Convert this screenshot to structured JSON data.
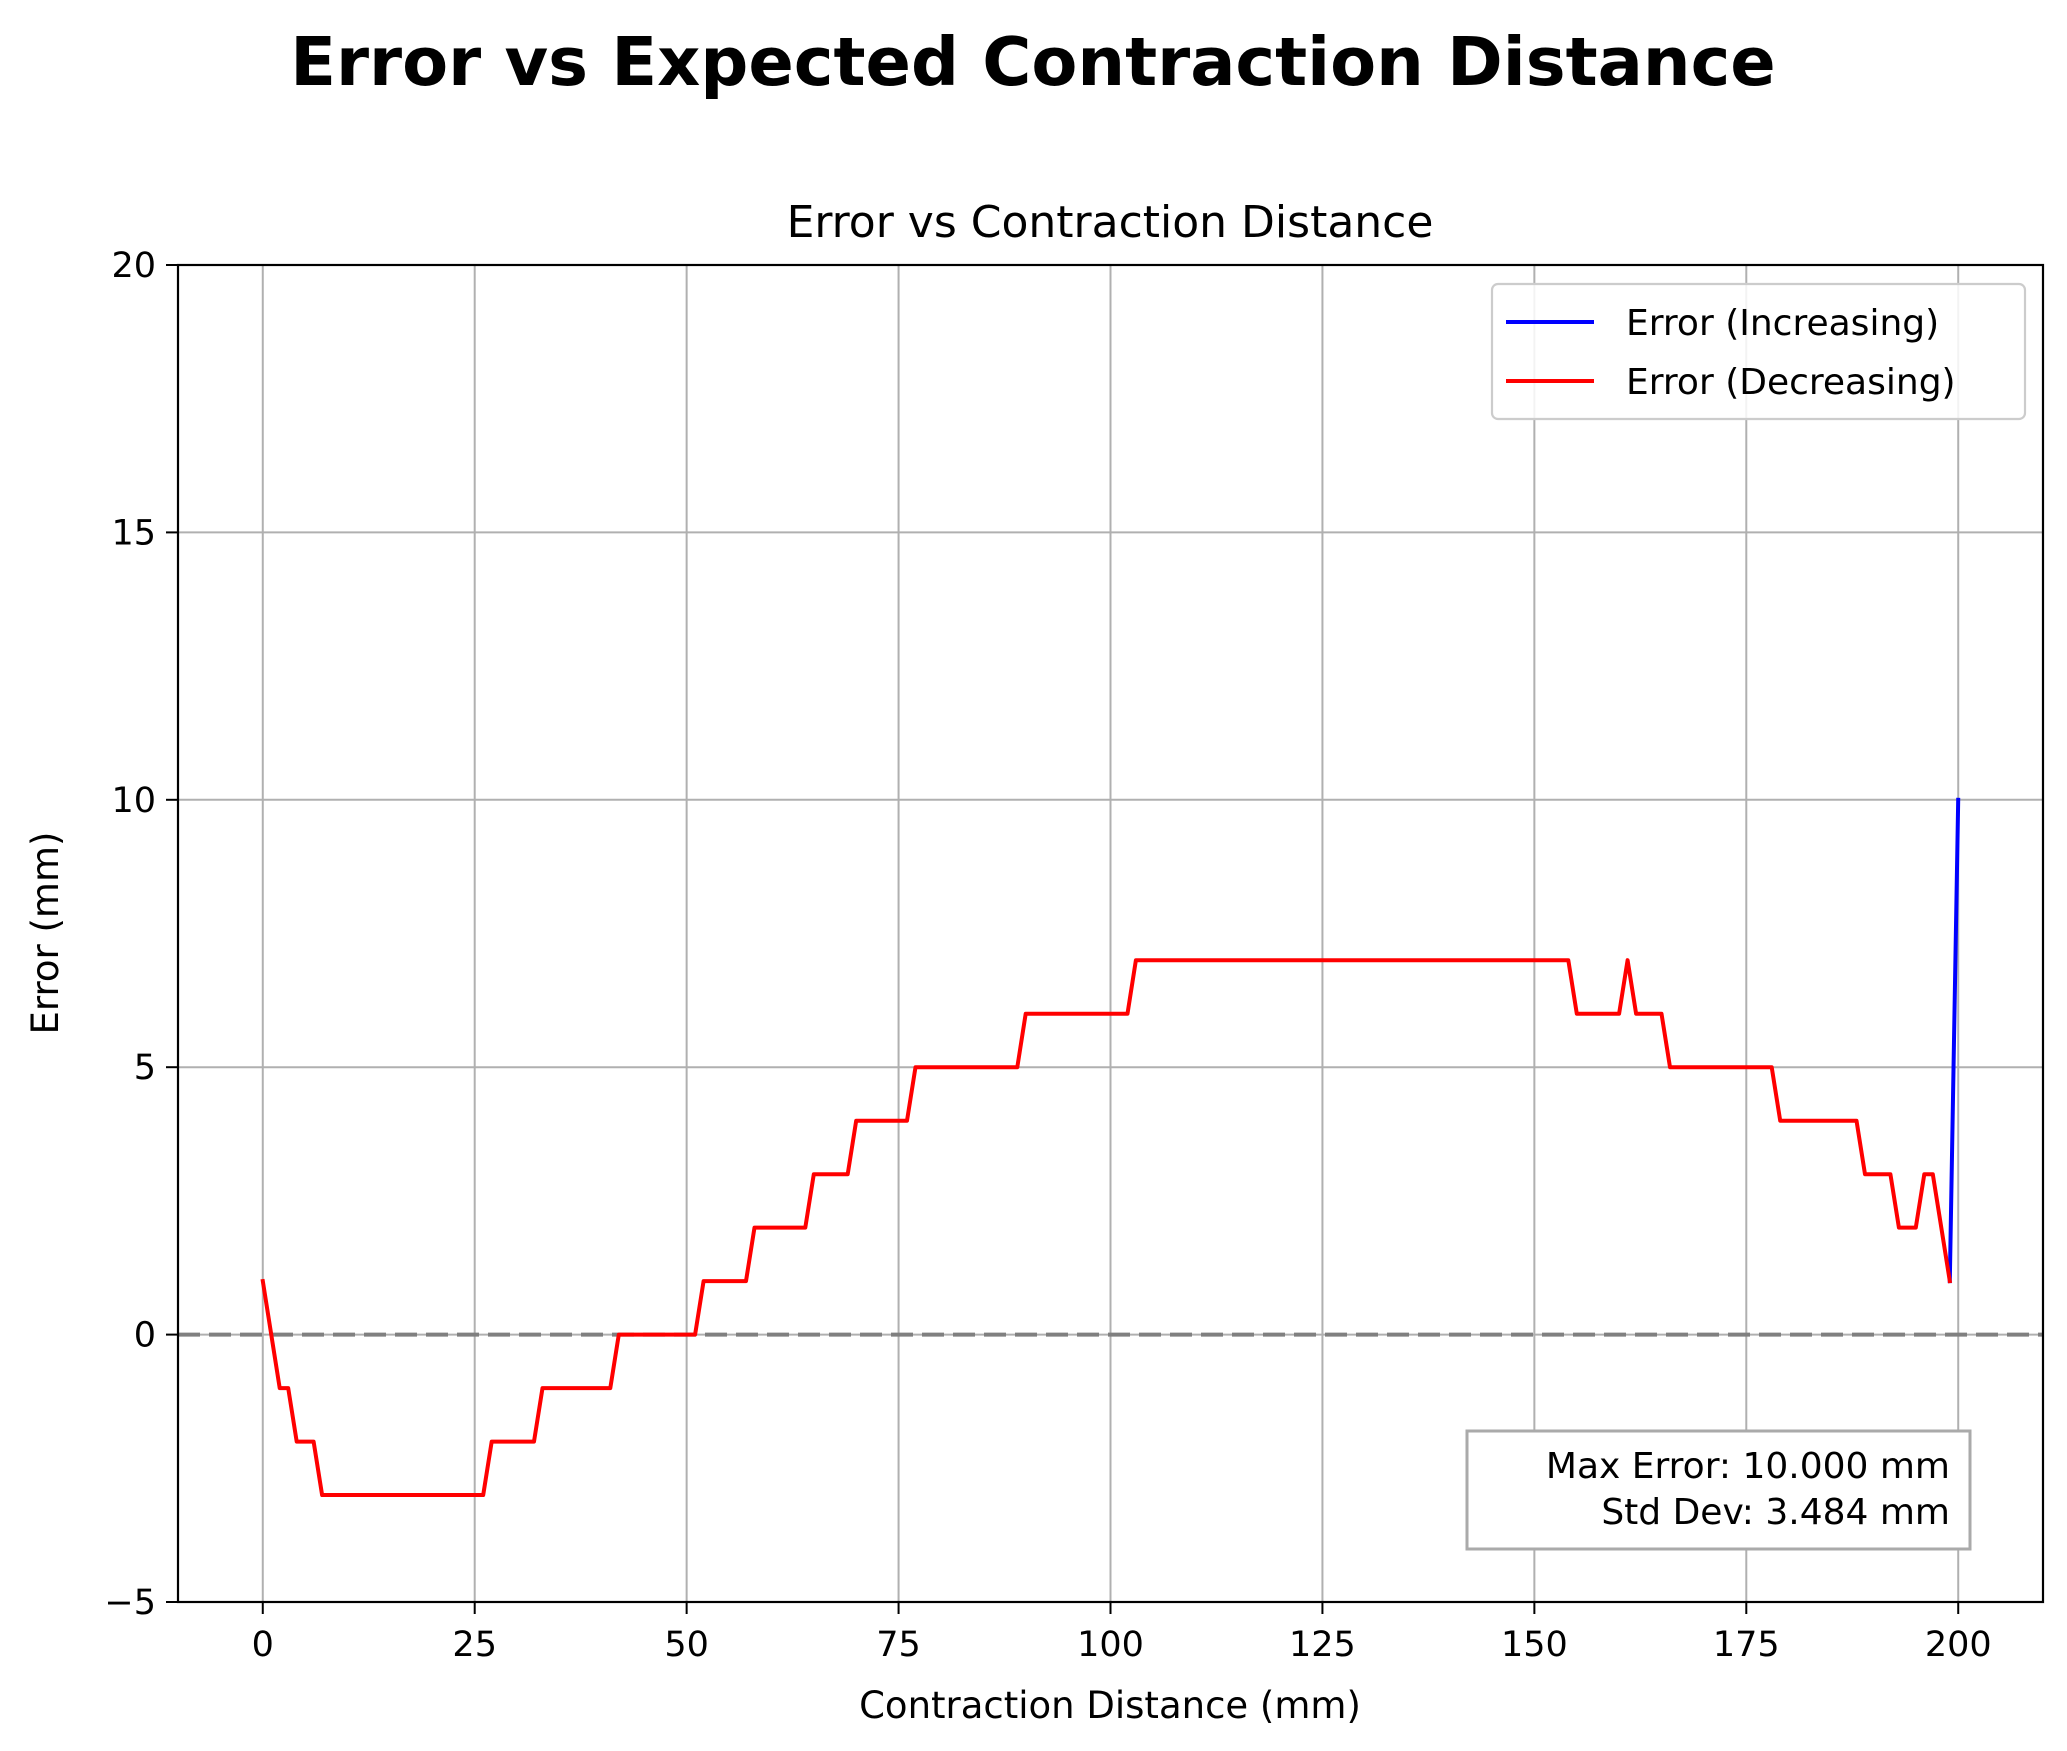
{
  "figure": {
    "suptitle": "Error vs Expected Contraction Distance"
  },
  "chart_data": {
    "type": "line",
    "title": "Error vs Contraction Distance",
    "xlabel": "Contraction Distance (mm)",
    "ylabel": "Error (mm)",
    "xlim": [
      -10,
      210
    ],
    "ylim": [
      -5,
      20
    ],
    "xticks": [
      0,
      25,
      50,
      75,
      100,
      125,
      150,
      175,
      200
    ],
    "yticks": [
      -5,
      0,
      5,
      10,
      15,
      20
    ],
    "grid": true,
    "legend_position": "top-right",
    "reference_line": {
      "y": 0,
      "style": "dashed",
      "color": "#808080"
    },
    "series": [
      {
        "name": "Error (Increasing)",
        "color": "#0000ff",
        "x": [
          199,
          200
        ],
        "y": [
          1,
          10
        ]
      },
      {
        "name": "Error (Decreasing)",
        "color": "#ff0000",
        "x": [
          0,
          2,
          3,
          4,
          6,
          7,
          26,
          27,
          32,
          33,
          41,
          42,
          51,
          52,
          57,
          58,
          64,
          65,
          69,
          70,
          76,
          77,
          89,
          90,
          102,
          103,
          154,
          155,
          160,
          161,
          162,
          165,
          166,
          178,
          179,
          188,
          189,
          192,
          193,
          195,
          196,
          197,
          199
        ],
        "y": [
          1,
          -1,
          -1,
          -2,
          -2,
          -3,
          -3,
          -2,
          -2,
          -1,
          -1,
          0,
          0,
          1,
          1,
          2,
          2,
          3,
          3,
          4,
          4,
          5,
          5,
          6,
          6,
          7,
          7,
          6,
          6,
          7,
          6,
          6,
          5,
          5,
          4,
          4,
          3,
          3,
          2,
          2,
          3,
          3,
          1
        ]
      }
    ],
    "annotation": {
      "lines": [
        "Max Error: 10.000 mm",
        "Std Dev: 3.484 mm"
      ],
      "position": "bottom-right"
    }
  }
}
